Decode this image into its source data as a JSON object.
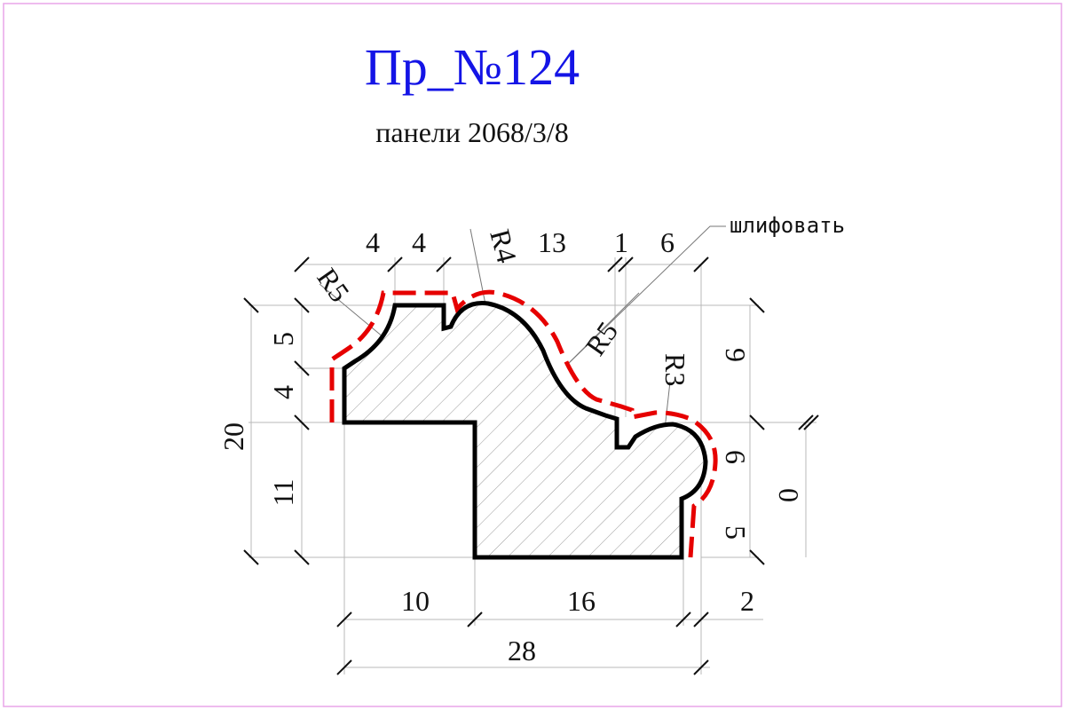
{
  "header": {
    "title": "Пр_№124",
    "subtitle": "панели 2068/3/8"
  },
  "note": {
    "sand_label": "шлифовать"
  },
  "dimensions": {
    "top": [
      "4",
      "4",
      "R4",
      "13",
      "1",
      "6"
    ],
    "radius_left": "R5",
    "radius_mid": "R5",
    "radius_right": "R3",
    "left_small": [
      "5",
      "4"
    ],
    "left_big": "11",
    "left_total": "20",
    "right": [
      "9",
      "6",
      "5"
    ],
    "right_zero": "0",
    "bottom": [
      "10",
      "16",
      "2"
    ],
    "bottom_total": "28"
  },
  "colors": {
    "title": "#1414e6",
    "sanding_line": "#e60000",
    "frame": "#e8a6e8"
  }
}
